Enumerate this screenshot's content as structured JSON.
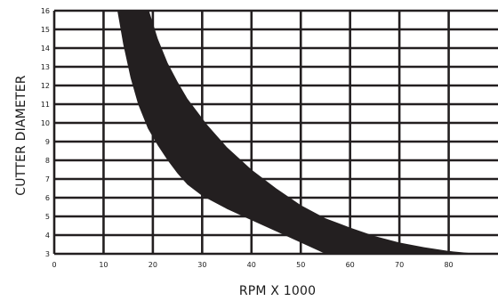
{
  "chart_data": {
    "type": "area",
    "title": "",
    "xlabel": "RPM X 1000",
    "ylabel": "CUTTER DIAMETER",
    "xlim": [
      0,
      90
    ],
    "ylim": [
      3,
      16
    ],
    "xticks": [
      0,
      10,
      20,
      30,
      40,
      50,
      60,
      70,
      80
    ],
    "yticks": [
      3,
      4,
      5,
      6,
      7,
      8,
      9,
      10,
      11,
      12,
      13,
      14,
      15,
      16
    ],
    "grid": true,
    "legend": "none",
    "band": {
      "upper": {
        "x": [
          19.2,
          21,
          23,
          25,
          27,
          29,
          31,
          35,
          40,
          45,
          50,
          55,
          60,
          65,
          70,
          75,
          80,
          86
        ],
        "y": [
          16,
          14.5,
          13.2,
          12.2,
          11.3,
          10.6,
          9.9,
          8.7,
          7.5,
          6.5,
          5.6,
          4.9,
          4.4,
          3.95,
          3.6,
          3.35,
          3.15,
          3
        ]
      },
      "lower": {
        "x": [
          12.8,
          14,
          15.5,
          17,
          19,
          21,
          23,
          25,
          27,
          30,
          35,
          40,
          45,
          50,
          55
        ],
        "y": [
          16,
          14.2,
          12.4,
          11,
          9.7,
          8.8,
          8,
          7.3,
          6.7,
          6.1,
          5.4,
          4.8,
          4.2,
          3.6,
          3
        ]
      }
    },
    "colors": {
      "band": "#231f20",
      "grid": "#231f20",
      "text": "#1a1a1a"
    }
  }
}
